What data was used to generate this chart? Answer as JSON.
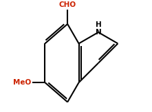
{
  "background_color": "#ffffff",
  "bond_color": "#000000",
  "label_cho": "CHO",
  "label_meo": "MeO",
  "label_h": "H",
  "label_n": "N",
  "cho_color": "#cc2200",
  "meo_color": "#cc2200",
  "n_color": "#000000",
  "h_color": "#000000",
  "figsize": [
    2.21,
    1.63
  ],
  "dpi": 100
}
